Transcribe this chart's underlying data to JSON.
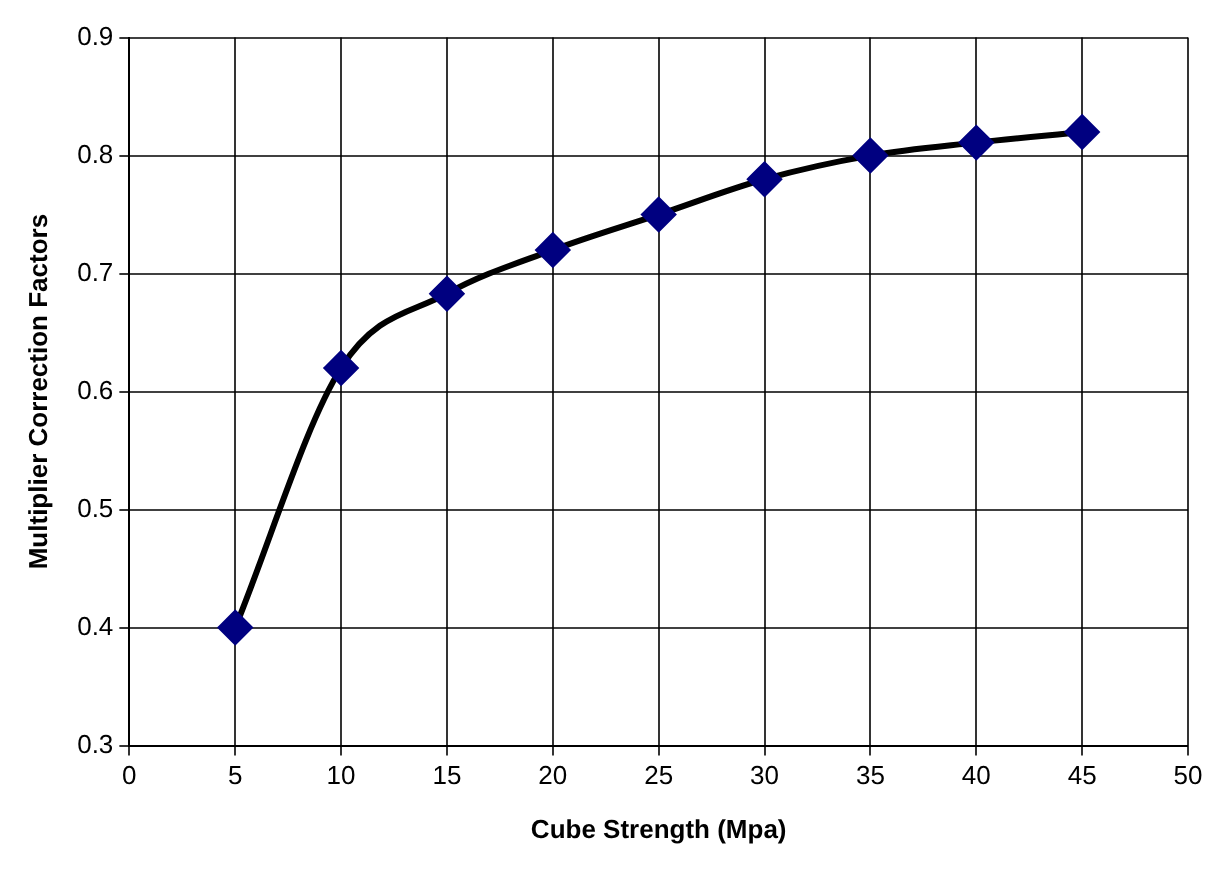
{
  "chart_data": {
    "type": "line",
    "xlabel": "Cube Strength (Mpa)",
    "ylabel": "Multiplier Correction Factors",
    "x": [
      5,
      10,
      15,
      20,
      25,
      30,
      35,
      40,
      45
    ],
    "series": [
      {
        "color": "#000000",
        "colors": [
          "#000080",
          "#000080",
          "#000080",
          "#000080",
          "#000080",
          "#000080",
          "#000080",
          "#000080",
          "#000080"
        ],
        "values": [
          0.4,
          0.62,
          0.683,
          0.72,
          0.75,
          0.78,
          0.8,
          0.811,
          0.82
        ]
      }
    ],
    "xlim": [
      0,
      50
    ],
    "xticks": [
      0,
      5,
      10,
      15,
      20,
      25,
      30,
      35,
      40,
      45,
      50
    ],
    "ylim": [
      0.3,
      0.9
    ],
    "yticks": [
      0.3,
      0.4,
      0.5,
      0.6,
      0.7,
      0.8,
      0.9
    ],
    "grid": true,
    "legend": false,
    "marker": "diamond",
    "line_style": "solid"
  }
}
